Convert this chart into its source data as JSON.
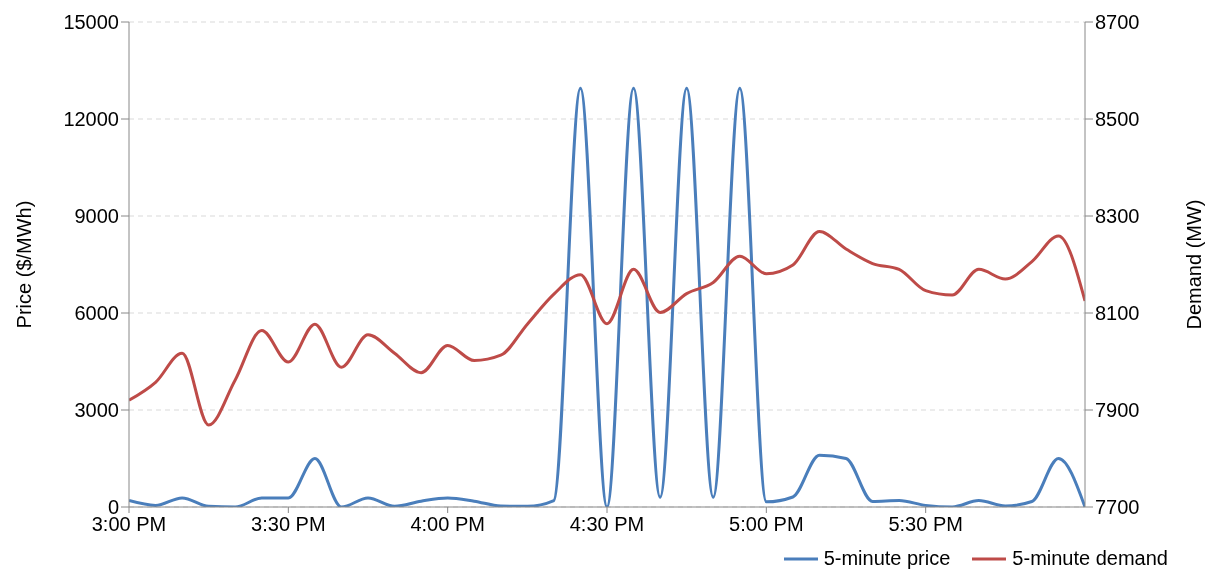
{
  "chart_data": {
    "type": "line",
    "ylabel": "Price ($/MWh)",
    "y2label": "Demand  (MW)",
    "categories": [
      "3:00 PM",
      null,
      null,
      null,
      null,
      null,
      "3:30 PM",
      null,
      null,
      null,
      null,
      null,
      "4:00 PM",
      null,
      null,
      null,
      null,
      null,
      "4:30 PM",
      null,
      null,
      null,
      null,
      null,
      "5:00 PM",
      null,
      null,
      null,
      null,
      null,
      "5:30 PM",
      null,
      null,
      null,
      null,
      null,
      null
    ],
    "series": [
      {
        "name": "5-minute price",
        "color": "#4a7ebb",
        "values": [
          200,
          50,
          280,
          20,
          0,
          280,
          280,
          1500,
          0,
          280,
          20,
          180,
          280,
          180,
          30,
          20,
          200,
          12950,
          0,
          12950,
          300,
          12950,
          300,
          12950,
          160,
          310,
          1600,
          1500,
          170,
          200,
          50,
          0,
          200,
          30,
          170,
          1500,
          0
        ]
      },
      {
        "name": "5-minute demand",
        "color": "#be4b48",
        "axis": "y2",
        "values": [
          7920,
          7957,
          8017,
          7869,
          7962,
          8064,
          7999,
          8077,
          7988,
          8055,
          8017,
          7977,
          8033,
          8002,
          8013,
          8077,
          8139,
          8179,
          8078,
          8190,
          8101,
          8140,
          8163,
          8217,
          8181,
          8199,
          8268,
          8232,
          8202,
          8190,
          8146,
          8137,
          8190,
          8170,
          8206,
          8259,
          8125
        ]
      }
    ],
    "ylim": [
      0,
      15000
    ],
    "yticks": [
      0,
      3000,
      6000,
      9000,
      12000,
      15000
    ],
    "y2lim": [
      7700,
      8700
    ],
    "y2ticks": [
      7700,
      7900,
      8100,
      8300,
      8500,
      8700
    ],
    "grid": "y",
    "legend": "bottom right",
    "marker": "none",
    "line_style": "solid"
  }
}
